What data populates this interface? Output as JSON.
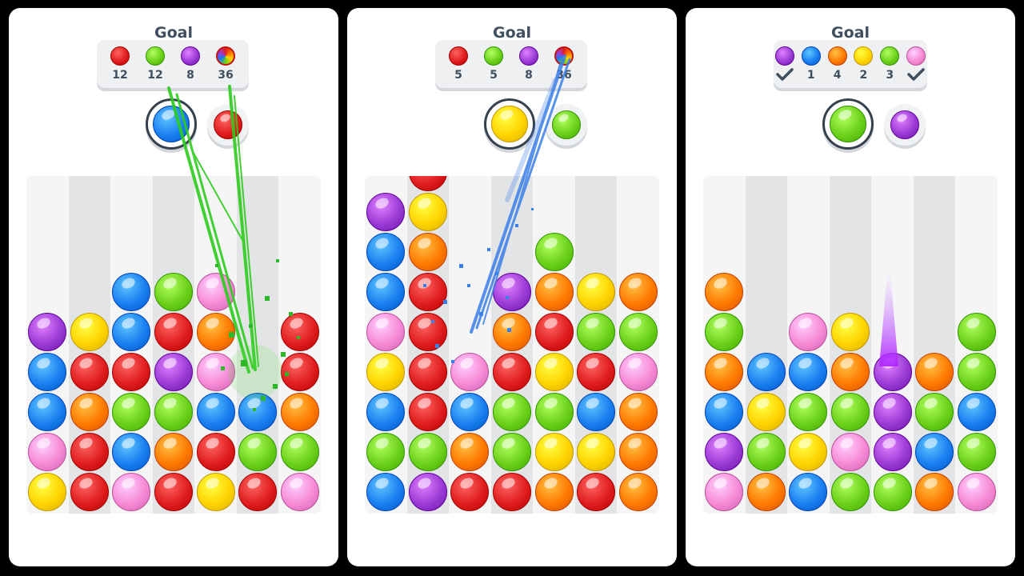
{
  "colors": {
    "red": "#e01e1e",
    "green": "#6cd11a",
    "purple": "#9b3bd6",
    "blue": "#1a7ff0",
    "orange": "#ff7a00",
    "yellow": "#ffd400",
    "pink": "#f78ad6"
  },
  "panels": [
    {
      "goal_title": "Goal",
      "goals": [
        {
          "color": "red",
          "count": "12"
        },
        {
          "color": "green",
          "count": "12"
        },
        {
          "color": "purple",
          "count": "8"
        },
        {
          "color": "rainbow",
          "count": "36"
        }
      ],
      "current_ball": "blue",
      "next_ball": "red",
      "columns": [
        [
          "yellow",
          "pink",
          "blue",
          "blue",
          "purple"
        ],
        [
          "red",
          "red",
          "orange",
          "red",
          "yellow"
        ],
        [
          "pink",
          "blue",
          "green",
          "red",
          "blue",
          "blue"
        ],
        [
          "red",
          "orange",
          "green",
          "purple",
          "red",
          "green"
        ],
        [
          "yellow",
          "red",
          "blue",
          "pink",
          "orange",
          "pink"
        ],
        [
          "red",
          "green",
          "blue"
        ],
        [
          "pink",
          "green",
          "orange",
          "red",
          "red"
        ]
      ],
      "effect": "green-laser"
    },
    {
      "goal_title": "Goal",
      "goals": [
        {
          "color": "red",
          "count": "5"
        },
        {
          "color": "green",
          "count": "5"
        },
        {
          "color": "purple",
          "count": "8"
        },
        {
          "color": "rainbow",
          "count": "36"
        }
      ],
      "current_ball": "yellow",
      "next_ball": "green",
      "columns": [
        [
          "blue",
          "green",
          "blue",
          "yellow",
          "pink",
          "blue",
          "blue",
          "purple"
        ],
        [
          "purple",
          "green",
          "red",
          "red",
          "red",
          "red",
          "orange",
          "yellow",
          "red"
        ],
        [
          "red",
          "orange",
          "blue",
          "pink"
        ],
        [
          "red",
          "green",
          "green",
          "red",
          "orange",
          "purple"
        ],
        [
          "orange",
          "yellow",
          "green",
          "yellow",
          "red",
          "orange",
          "green"
        ],
        [
          "red",
          "yellow",
          "blue",
          "red",
          "green",
          "yellow"
        ],
        [
          "orange",
          "orange",
          "orange",
          "pink",
          "green",
          "orange"
        ]
      ],
      "effect": "blue-laser"
    },
    {
      "goal_title": "Goal",
      "goals": [
        {
          "color": "purple",
          "count": "",
          "done": true
        },
        {
          "color": "blue",
          "count": "1"
        },
        {
          "color": "orange",
          "count": "4"
        },
        {
          "color": "yellow",
          "count": "2"
        },
        {
          "color": "green",
          "count": "3"
        },
        {
          "color": "pink",
          "count": "",
          "done": true
        }
      ],
      "current_ball": "green",
      "next_ball": "purple",
      "columns": [
        [
          "pink",
          "purple",
          "blue",
          "orange",
          "green",
          "orange"
        ],
        [
          "orange",
          "green",
          "yellow",
          "blue"
        ],
        [
          "blue",
          "yellow",
          "green",
          "blue",
          "pink"
        ],
        [
          "green",
          "pink",
          "green",
          "orange",
          "yellow"
        ],
        [
          "green",
          "purple",
          "purple",
          "purple"
        ],
        [
          "orange",
          "blue",
          "green",
          "orange"
        ],
        [
          "pink",
          "green",
          "blue",
          "green",
          "green"
        ]
      ],
      "effect": "purple-beam"
    }
  ]
}
